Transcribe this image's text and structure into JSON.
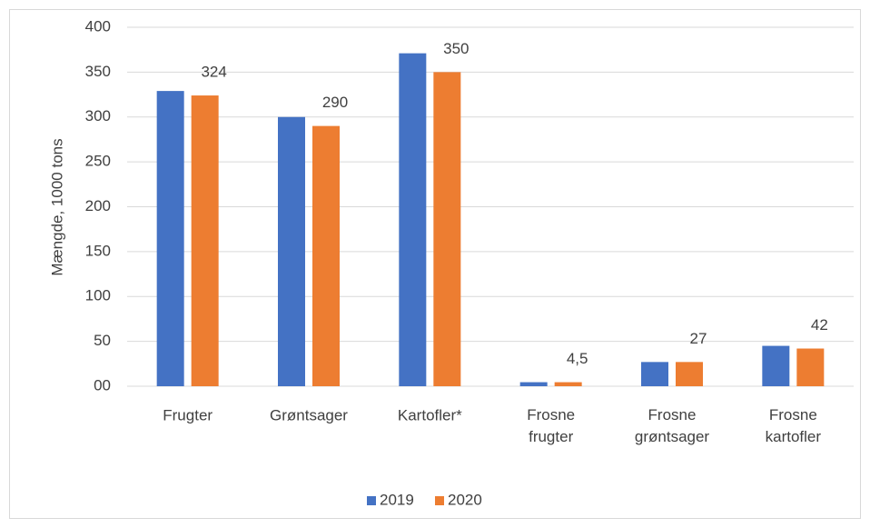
{
  "chart_data": {
    "type": "bar",
    "y_label": "Mængde, 1000 tons",
    "categories": [
      "Frugter",
      "Grøntsager",
      "Kartofler*",
      "Frosne frugter",
      "Frosne grøntsager",
      "Frosne kartofler"
    ],
    "series": [
      {
        "name": "2019",
        "color": "#4472c4",
        "values": [
          329,
          300,
          371,
          4.5,
          27,
          45
        ]
      },
      {
        "name": "2020",
        "color": "#ed7d31",
        "values": [
          324,
          290,
          350,
          4.5,
          27,
          42
        ],
        "value_labels": [
          "324",
          "290",
          "350",
          "4,5",
          "27",
          "42"
        ]
      }
    ],
    "ylim": [
      0,
      400
    ],
    "yticks": [
      {
        "value": 0,
        "label": "00"
      },
      50,
      100,
      150,
      200,
      250,
      300,
      350,
      400
    ],
    "grid": true,
    "legend": "bottom"
  }
}
